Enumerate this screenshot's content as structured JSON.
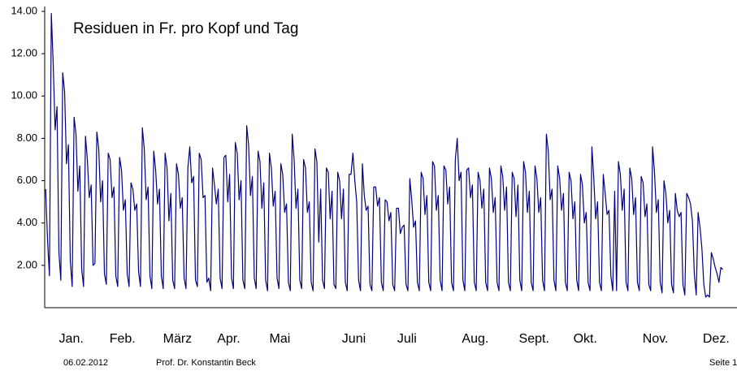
{
  "chart_data": {
    "type": "line",
    "title": "Residuen in Fr. pro Kopf und Tag",
    "color": "#000080",
    "xlim": [
      0,
      365
    ],
    "xticks": [
      {
        "value": 14,
        "label": "Jan."
      },
      {
        "value": 41,
        "label": "Feb."
      },
      {
        "value": 70,
        "label": "März"
      },
      {
        "value": 97,
        "label": "Apr."
      },
      {
        "value": 124,
        "label": "Mai"
      },
      {
        "value": 163,
        "label": "Juni"
      },
      {
        "value": 191,
        "label": "Juli"
      },
      {
        "value": 227,
        "label": "Aug."
      },
      {
        "value": 258,
        "label": "Sept."
      },
      {
        "value": 285,
        "label": "Okt."
      },
      {
        "value": 322,
        "label": "Nov."
      },
      {
        "value": 354,
        "label": "Dez."
      }
    ],
    "ylim": [
      0,
      14
    ],
    "yticks": [
      {
        "value": 2,
        "label": "2.00"
      },
      {
        "value": 4,
        "label": "4.00"
      },
      {
        "value": 6,
        "label": "6.00"
      },
      {
        "value": 8,
        "label": "8.00"
      },
      {
        "value": 10,
        "label": "10.00"
      },
      {
        "value": 12,
        "label": "12.00"
      },
      {
        "value": 14,
        "label": "14.00"
      }
    ],
    "values": [
      5.6,
      3.2,
      1.5,
      13.9,
      11.5,
      8.4,
      9.5,
      2.6,
      1.3,
      11.1,
      10.2,
      6.8,
      7.7,
      2.2,
      1.0,
      9.0,
      8.2,
      5.5,
      6.7,
      1.8,
      1.0,
      8.1,
      7.0,
      5.2,
      5.8,
      2.0,
      2.1,
      8.3,
      7.5,
      5.0,
      6.0,
      1.6,
      1.1,
      7.3,
      7.0,
      5.2,
      5.7,
      1.5,
      1.0,
      7.1,
      6.5,
      4.6,
      5.1,
      1.6,
      1.0,
      5.9,
      5.6,
      4.6,
      4.9,
      1.7,
      1.0,
      8.5,
      7.5,
      5.1,
      5.7,
      1.5,
      0.9,
      7.4,
      6.5,
      4.9,
      5.6,
      1.5,
      0.9,
      7.3,
      6.6,
      4.1,
      5.4,
      1.3,
      0.9,
      6.8,
      6.3,
      4.7,
      5.2,
      1.4,
      0.9,
      6.6,
      7.6,
      5.9,
      6.2,
      1.3,
      1.0,
      7.3,
      7.0,
      5.2,
      5.3,
      1.2,
      1.4,
      0.8,
      6.6,
      5.8,
      4.9,
      5.6,
      1.4,
      0.9,
      7.1,
      7.2,
      5.0,
      6.3,
      1.4,
      0.9,
      7.8,
      7.3,
      5.1,
      6.0,
      1.3,
      0.9,
      8.6,
      7.7,
      5.3,
      6.2,
      1.4,
      0.9,
      7.4,
      6.9,
      4.7,
      5.9,
      1.3,
      0.8,
      7.3,
      6.6,
      4.8,
      5.5,
      1.4,
      0.9,
      6.8,
      6.3,
      4.5,
      4.9,
      1.2,
      0.8,
      8.2,
      7.0,
      4.7,
      5.6,
      1.3,
      0.9,
      7.0,
      6.6,
      4.5,
      5.0,
      1.2,
      0.8,
      7.5,
      6.9,
      3.1,
      5.6,
      1.3,
      0.9,
      6.6,
      6.4,
      4.2,
      5.5,
      1.1,
      0.9,
      6.4,
      6.0,
      4.2,
      5.6,
      1.2,
      0.8,
      6.3,
      6.3,
      7.3,
      6.0,
      5.0,
      1.3,
      0.8,
      6.8,
      5.3,
      4.6,
      4.8,
      1.1,
      0.8,
      5.7,
      5.7,
      4.8,
      5.2,
      1.2,
      0.8,
      5.1,
      5.0,
      4.1,
      4.5,
      1.1,
      0.8,
      4.7,
      4.7,
      3.5,
      3.8,
      3.9,
      1.1,
      0.8,
      6.1,
      5.1,
      3.8,
      4.1,
      1.2,
      0.8,
      6.4,
      6.1,
      4.4,
      5.3,
      1.2,
      0.8,
      6.9,
      6.7,
      4.6,
      5.3,
      1.3,
      0.8,
      6.7,
      6.5,
      4.9,
      5.7,
      1.2,
      0.8,
      7.0,
      8.0,
      6.0,
      6.4,
      1.3,
      0.8,
      6.5,
      6.6,
      5.2,
      5.8,
      1.2,
      0.8,
      6.4,
      6.0,
      4.7,
      5.6,
      1.2,
      0.8,
      6.6,
      6.1,
      4.5,
      5.2,
      1.2,
      0.8,
      6.7,
      6.2,
      4.6,
      5.7,
      1.2,
      0.8,
      6.4,
      6.1,
      4.3,
      5.8,
      1.3,
      0.8,
      6.9,
      6.4,
      4.5,
      5.5,
      1.2,
      0.8,
      6.7,
      6.1,
      4.5,
      5.2,
      1.3,
      0.8,
      8.2,
      7.4,
      5.1,
      5.6,
      1.3,
      0.8,
      6.7,
      6.1,
      4.6,
      5.4,
      1.2,
      0.8,
      6.4,
      6.0,
      4.2,
      5.0,
      1.3,
      0.8,
      6.3,
      5.8,
      4.0,
      4.5,
      1.2,
      0.8,
      7.6,
      6.1,
      4.2,
      5.0,
      1.2,
      0.8,
      6.3,
      5.4,
      4.4,
      4.6,
      1.5,
      0.8,
      5.5,
      0.8,
      6.9,
      6.3,
      4.6,
      5.6,
      1.2,
      0.8,
      6.6,
      6.1,
      4.4,
      5.2,
      1.2,
      0.8,
      6.2,
      5.9,
      4.3,
      4.9,
      1.1,
      0.8,
      7.6,
      6.4,
      4.5,
      5.1,
      1.2,
      0.7,
      6.0,
      5.4,
      4.0,
      4.6,
      1.1,
      0.7,
      5.4,
      4.6,
      4.3,
      4.5,
      1.1,
      0.6,
      5.4,
      5.2,
      4.9,
      4.1,
      1.6,
      0.6,
      4.5,
      3.8,
      2.8,
      1.1,
      0.5,
      0.6,
      0.5,
      2.6,
      2.3,
      1.9,
      1.6,
      1.2,
      1.9,
      1.8
    ]
  },
  "footer": {
    "date": "06.02.2012",
    "author": "Prof. Dr. Konstantin Beck",
    "page": "Seite 1"
  }
}
